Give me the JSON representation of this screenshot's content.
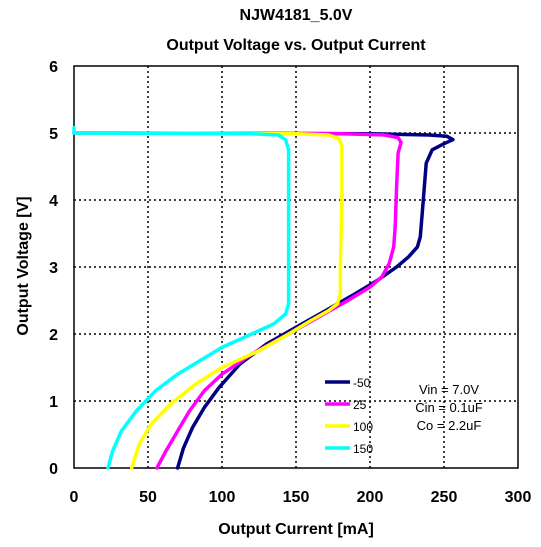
{
  "chart_data": {
    "type": "line",
    "title": "NJW4181_5.0V",
    "subtitle": "Output Voltage vs. Output Current",
    "xlabel": "Output Current [mA]",
    "ylabel": "Output Voltage [V]",
    "xlim": [
      0,
      300
    ],
    "ylim": [
      0,
      6
    ],
    "xticks": [
      "0",
      "50",
      "100",
      "150",
      "200",
      "250",
      "300"
    ],
    "yticks": [
      "0",
      "1",
      "2",
      "3",
      "4",
      "5",
      "6"
    ],
    "grid": true,
    "legend_position": "bottom-center",
    "conditions": [
      "Vin = 7.0V",
      "Cin = 0.1uF",
      "Co = 2.2uF"
    ],
    "series": [
      {
        "name": "-50",
        "color": "#000080",
        "points": [
          [
            0,
            5.0
          ],
          [
            200,
            4.99
          ],
          [
            240,
            4.97
          ],
          [
            252,
            4.95
          ],
          [
            256,
            4.9
          ],
          [
            250,
            4.84
          ],
          [
            242,
            4.75
          ],
          [
            238,
            4.55
          ],
          [
            236,
            4.0
          ],
          [
            234,
            3.45
          ],
          [
            232,
            3.3
          ],
          [
            226,
            3.15
          ],
          [
            218,
            3.0
          ],
          [
            205,
            2.8
          ],
          [
            190,
            2.6
          ],
          [
            170,
            2.35
          ],
          [
            150,
            2.1
          ],
          [
            130,
            1.85
          ],
          [
            112,
            1.55
          ],
          [
            98,
            1.2
          ],
          [
            88,
            0.9
          ],
          [
            80,
            0.6
          ],
          [
            74,
            0.3
          ],
          [
            70,
            0.0
          ]
        ]
      },
      {
        "name": "25",
        "color": "#FF00FF",
        "points": [
          [
            0,
            5.0
          ],
          [
            180,
            4.99
          ],
          [
            210,
            4.97
          ],
          [
            219,
            4.93
          ],
          [
            221,
            4.86
          ],
          [
            219,
            4.7
          ],
          [
            218,
            4.2
          ],
          [
            217,
            3.6
          ],
          [
            216,
            3.3
          ],
          [
            213,
            3.05
          ],
          [
            208,
            2.85
          ],
          [
            200,
            2.7
          ],
          [
            185,
            2.5
          ],
          [
            165,
            2.25
          ],
          [
            145,
            2.0
          ],
          [
            120,
            1.7
          ],
          [
            100,
            1.4
          ],
          [
            88,
            1.15
          ],
          [
            78,
            0.85
          ],
          [
            70,
            0.55
          ],
          [
            62,
            0.25
          ],
          [
            56,
            0.0
          ]
        ]
      },
      {
        "name": "100",
        "color": "#FFFF00",
        "points": [
          [
            0,
            5.0
          ],
          [
            150,
            4.99
          ],
          [
            172,
            4.97
          ],
          [
            179,
            4.92
          ],
          [
            181,
            4.8
          ],
          [
            181,
            4.0
          ],
          [
            180,
            3.0
          ],
          [
            180,
            2.6
          ],
          [
            178,
            2.45
          ],
          [
            172,
            2.35
          ],
          [
            160,
            2.2
          ],
          [
            145,
            2.0
          ],
          [
            125,
            1.75
          ],
          [
            100,
            1.5
          ],
          [
            82,
            1.25
          ],
          [
            65,
            0.95
          ],
          [
            52,
            0.65
          ],
          [
            44,
            0.35
          ],
          [
            39,
            0.0
          ]
        ]
      },
      {
        "name": "150",
        "color": "#00FFFF",
        "points": [
          [
            0,
            5.08
          ],
          [
            0,
            5.0
          ],
          [
            120,
            4.99
          ],
          [
            138,
            4.97
          ],
          [
            143,
            4.9
          ],
          [
            145,
            4.75
          ],
          [
            145,
            4.0
          ],
          [
            145,
            3.0
          ],
          [
            145,
            2.45
          ],
          [
            143,
            2.3
          ],
          [
            135,
            2.15
          ],
          [
            120,
            2.0
          ],
          [
            100,
            1.8
          ],
          [
            85,
            1.6
          ],
          [
            70,
            1.4
          ],
          [
            55,
            1.15
          ],
          [
            42,
            0.85
          ],
          [
            32,
            0.55
          ],
          [
            26,
            0.25
          ],
          [
            23,
            0.0
          ]
        ]
      }
    ]
  }
}
